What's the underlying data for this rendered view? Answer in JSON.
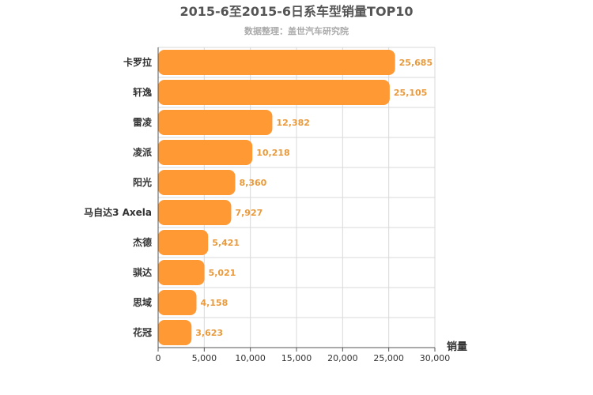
{
  "chart_data": {
    "type": "bar",
    "orientation": "horizontal",
    "title": "2015-6至2015-6日系车型销量TOP10",
    "subtitle": "数据整理：盖世汽车研究院",
    "categories": [
      "卡罗拉",
      "轩逸",
      "雷凌",
      "凌派",
      "阳光",
      "马自达3 Axela",
      "杰德",
      "骐达",
      "思域",
      "花冠"
    ],
    "values": [
      25685,
      25105,
      12382,
      10218,
      8360,
      7927,
      5421,
      5021,
      4158,
      3623
    ],
    "value_labels": [
      "25,685",
      "25,105",
      "12,382",
      "10,218",
      "8,360",
      "7,927",
      "5,421",
      "5,021",
      "4,158",
      "3,623"
    ],
    "xlabel": "销量",
    "ylabel": "",
    "xlim": [
      0,
      30000
    ],
    "xticks": [
      0,
      5000,
      10000,
      15000,
      20000,
      25000,
      30000
    ],
    "xtick_labels": [
      "0",
      "5,000",
      "10,000",
      "15,000",
      "20,000",
      "25,000",
      "30,000"
    ],
    "grid": true,
    "legend": "none",
    "colors": {
      "bar": "#ff9933",
      "value_label": "#e89a3c",
      "grid": "#d9d9d9",
      "axis": "#555555"
    }
  }
}
